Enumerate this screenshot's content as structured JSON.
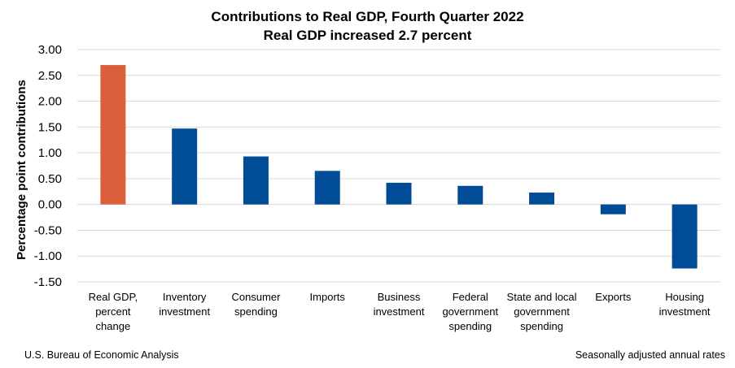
{
  "chart_data": {
    "type": "bar",
    "title": "Contributions to Real GDP, Fourth Quarter 2022",
    "subtitle": "Real GDP increased 2.7 percent",
    "ylabel": "Percentage point contributions",
    "xlabel": "",
    "ylim": [
      -1.5,
      3.0
    ],
    "yticks": [
      3.0,
      2.5,
      2.0,
      1.5,
      1.0,
      0.5,
      0.0,
      -0.5,
      -1.0,
      -1.5
    ],
    "ytick_labels": [
      "3.00",
      "2.50",
      "2.00",
      "1.50",
      "1.00",
      "0.50",
      "0.00",
      "-0.50",
      "-1.00",
      "-1.50"
    ],
    "grid": true,
    "legend": "none",
    "categories": [
      [
        "Real GDP,",
        "percent",
        "change"
      ],
      [
        "Inventory",
        "investment"
      ],
      [
        "Consumer",
        "spending"
      ],
      [
        "Imports"
      ],
      [
        "Business",
        "investment"
      ],
      [
        "Federal",
        "government",
        "spending"
      ],
      [
        "State and local",
        "government",
        "spending"
      ],
      [
        "Exports"
      ],
      [
        "Housing",
        "investment"
      ]
    ],
    "values": [
      2.7,
      1.47,
      0.93,
      0.65,
      0.42,
      0.36,
      0.23,
      -0.19,
      -1.24
    ],
    "bar_colors": [
      "#d9603b",
      "#004c97",
      "#004c97",
      "#004c97",
      "#004c97",
      "#004c97",
      "#004c97",
      "#004c97",
      "#004c97"
    ],
    "gridline_color": "#d9d9d9"
  },
  "footer": {
    "source": "U.S. Bureau of Economic Analysis",
    "note": "Seasonally adjusted annual rates"
  }
}
